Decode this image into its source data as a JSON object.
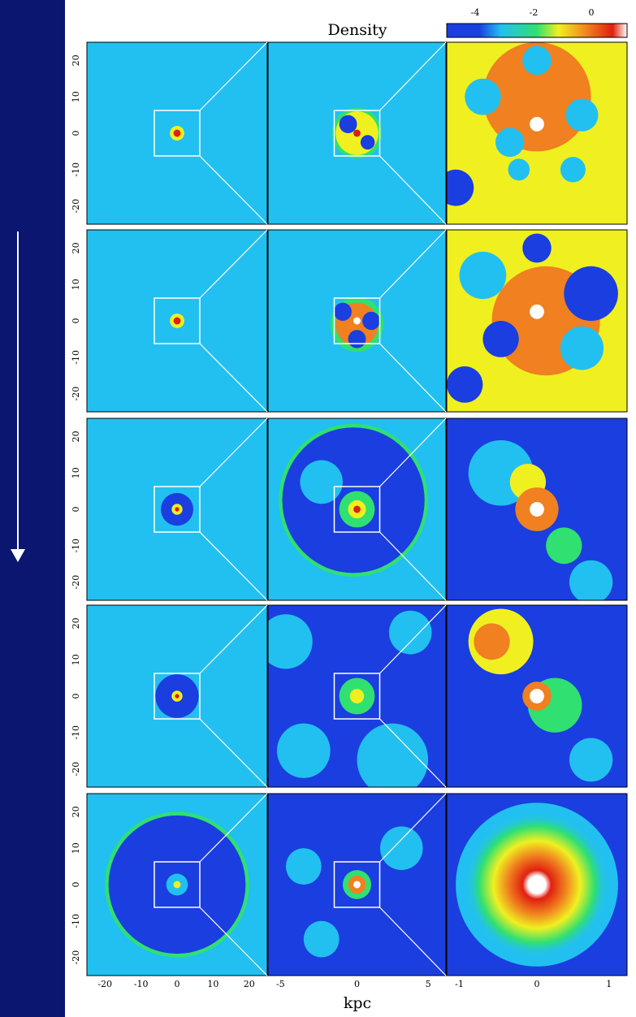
{
  "title": "Density",
  "colorbar": {
    "ticks": [
      "-4",
      "-2",
      "0"
    ]
  },
  "y_axis": {
    "ticks": [
      "20",
      "10",
      "0",
      "-10",
      "-20"
    ]
  },
  "x_axis": {
    "panels": [
      [
        "-20",
        "-10",
        "0",
        "10",
        "20"
      ],
      [
        "-5",
        "0",
        "5"
      ],
      [
        "-1",
        "0",
        "1"
      ]
    ]
  },
  "x_label": "kpc"
}
